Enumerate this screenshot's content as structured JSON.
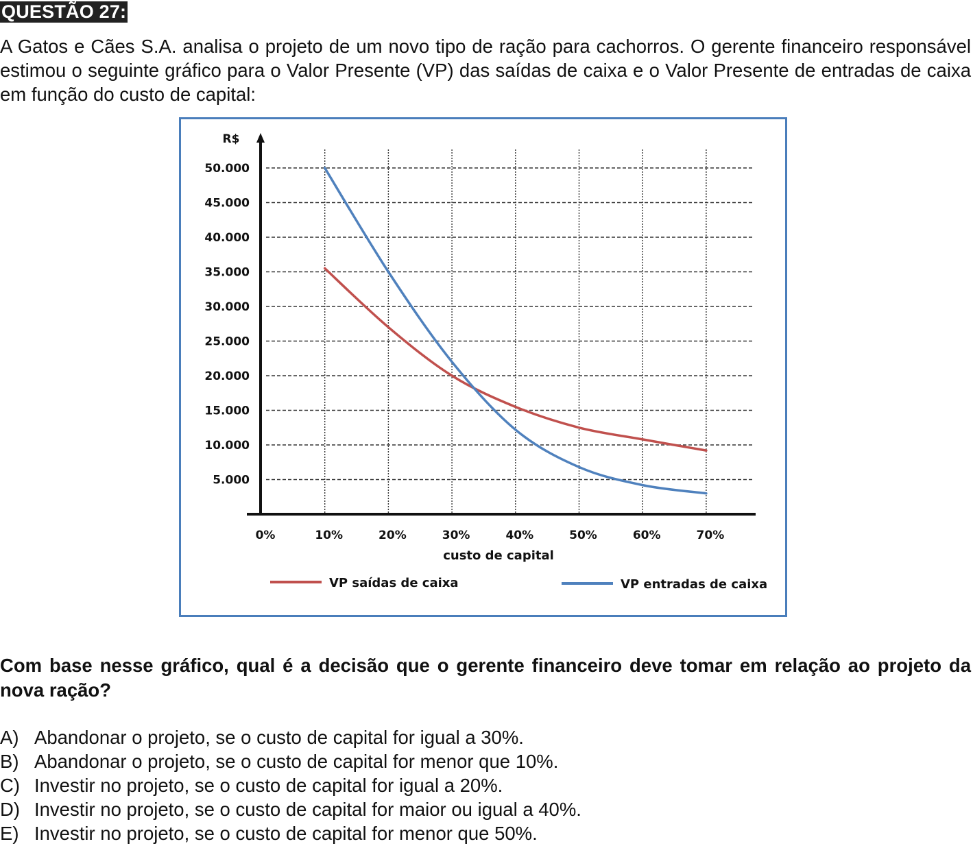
{
  "question": {
    "title": "QUESTÃO 27:",
    "intro": "A Gatos e Cães S.A. analisa o projeto de um novo tipo de ração para cachorros. O gerente financeiro responsável estimou o seguinte gráfico para o Valor Presente (VP) das saídas de caixa e o Valor Presente de entradas de caixa em função do custo de capital:",
    "prompt": "Com base nesse gráfico, qual é a decisão que o gerente financeiro deve tomar em relação ao projeto da nova ração?",
    "options": [
      {
        "letter": "A)",
        "text": "Abandonar o projeto, se o custo de capital for igual a 30%."
      },
      {
        "letter": "B)",
        "text": "Abandonar o projeto, se o custo de capital for menor que 10%."
      },
      {
        "letter": "C)",
        "text": "Investir no projeto, se o custo de capital for igual a 20%."
      },
      {
        "letter": "D)",
        "text": "Investir no projeto, se o custo de capital for maior ou igual a 40%."
      },
      {
        "letter": "E)",
        "text": "Investir no projeto, se o custo de capital for menor que 50%."
      }
    ]
  },
  "chart_data": {
    "type": "line",
    "title": "",
    "xlabel": "custo de capital",
    "ylabel": "R$",
    "x": [
      10,
      20,
      30,
      40,
      50,
      60,
      70
    ],
    "x_tick_labels": [
      "0%",
      "10%",
      "20%",
      "30%",
      "40%",
      "50%",
      "60%",
      "70%"
    ],
    "y_tick_labels": [
      "50.000",
      "45.000",
      "40.000",
      "35.000",
      "30.000",
      "25.000",
      "20.000",
      "15.000",
      "10.000",
      "5.000"
    ],
    "xlim": [
      0,
      70
    ],
    "ylim": [
      0,
      50000
    ],
    "grid": true,
    "legend_position": "bottom",
    "series": [
      {
        "name": "VP saídas de caixa",
        "color": "#c0504d",
        "values": [
          35500,
          27000,
          20000,
          15500,
          12500,
          10800,
          9200
        ]
      },
      {
        "name": "VP entradas de caixa",
        "color": "#4f81bd",
        "values": [
          50000,
          35000,
          22000,
          12200,
          6800,
          4200,
          3000
        ]
      }
    ]
  }
}
